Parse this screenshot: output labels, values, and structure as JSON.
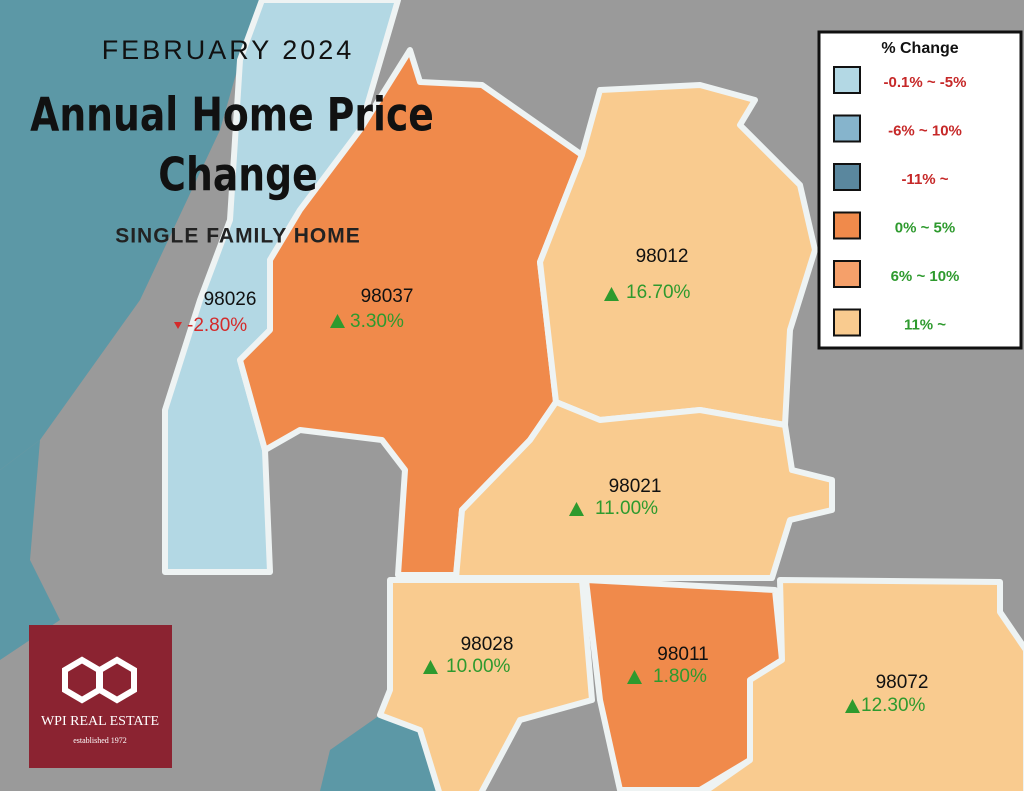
{
  "header": {
    "date": "FEBRUARY 2024",
    "title_line1": "Annual Home Price",
    "title_line2": "Change",
    "subtitle": "SINGLE FAMILY HOME"
  },
  "regions": [
    {
      "zip": "98026",
      "change": "-2.80%"
    },
    {
      "zip": "98037",
      "change": "3.30%"
    },
    {
      "zip": "98012",
      "change": "16.70%"
    },
    {
      "zip": "98021",
      "change": "11.00%"
    },
    {
      "zip": "98028",
      "change": "10.00%"
    },
    {
      "zip": "98011",
      "change": "1.80%"
    },
    {
      "zip": "98072",
      "change": "12.30%"
    }
  ],
  "legend": {
    "title": "% Change",
    "items": [
      {
        "label": "-0.1% ~ -5%",
        "color": "#b3d8e4"
      },
      {
        "label": "-6% ~ 10%",
        "color": "#86b4cc"
      },
      {
        "label": "-11% ~",
        "color": "#5a879e"
      },
      {
        "label": "0% ~ 5%",
        "color": "#f08a4b"
      },
      {
        "label": "6% ~ 10%",
        "color": "#f5a06a"
      },
      {
        "label": "11% ~",
        "color": "#f9cb8f"
      }
    ]
  },
  "logo": {
    "name": "WPI REAL ESTATE",
    "tagline": "established 1972"
  }
}
